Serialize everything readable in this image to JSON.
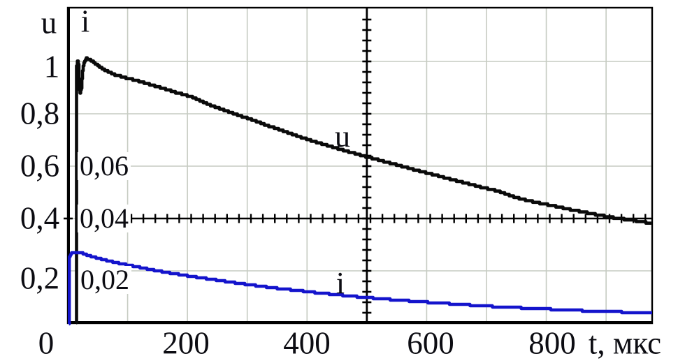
{
  "chart_data": {
    "type": "line",
    "title": "",
    "x_axis": {
      "label": "t, мкс",
      "unit": "мкс",
      "range": [
        0,
        977
      ],
      "grid_step": 100,
      "tick_values": [
        0,
        200,
        400,
        600,
        800
      ],
      "tick_labels": [
        "0",
        "200",
        "400",
        "600",
        "800"
      ]
    },
    "y_axis_u": {
      "label": "u",
      "range": [
        0,
        1.2
      ],
      "grid_step": 0.2,
      "tick_values": [
        1.0,
        0.8,
        0.6,
        0.4,
        0.2
      ],
      "tick_labels": [
        "1",
        "0,8",
        "0,6",
        "0,4",
        "0,2"
      ]
    },
    "y_axis_i": {
      "label": "i",
      "range": [
        0,
        0.12
      ],
      "scale_ratio_to_u": 0.1,
      "tick_values": [
        0.06,
        0.04,
        0.02
      ],
      "tick_labels": [
        "0,06",
        "0,04",
        "0,02"
      ]
    },
    "crosshair_axes": {
      "vertical_at_t": 500,
      "horizontal_at_u": 0.4,
      "minor_tick_u": 0.04,
      "minor_tick_t": 20
    },
    "grid": {
      "show": true,
      "color": "#c6cbc2"
    },
    "legend_position": "inline-labels",
    "series": [
      {
        "name": "u",
        "label": "u",
        "color": "#0a0a0a",
        "axis": "u",
        "points": [
          [
            14,
            0
          ],
          [
            14.6,
            0.985
          ],
          [
            16,
            1.0
          ],
          [
            17.5,
            0.988
          ],
          [
            18.6,
            0.905
          ],
          [
            20.5,
            0.882
          ],
          [
            22.5,
            0.9
          ],
          [
            24.5,
            0.965
          ],
          [
            27,
            0.998
          ],
          [
            31,
            1.012
          ],
          [
            40,
            1.002
          ],
          [
            50,
            0.984
          ],
          [
            63,
            0.965
          ],
          [
            80,
            0.948
          ],
          [
            100,
            0.935
          ],
          [
            120,
            0.924
          ],
          [
            150,
            0.903
          ],
          [
            180,
            0.882
          ],
          [
            210,
            0.862
          ],
          [
            240,
            0.831
          ],
          [
            270,
            0.806
          ],
          [
            300,
            0.783
          ],
          [
            330,
            0.758
          ],
          [
            360,
            0.734
          ],
          [
            390,
            0.71
          ],
          [
            420,
            0.688
          ],
          [
            450,
            0.668
          ],
          [
            480,
            0.648
          ],
          [
            510,
            0.629
          ],
          [
            540,
            0.611
          ],
          [
            570,
            0.592
          ],
          [
            600,
            0.574
          ],
          [
            630,
            0.556
          ],
          [
            660,
            0.538
          ],
          [
            690,
            0.52
          ],
          [
            720,
            0.504
          ],
          [
            750,
            0.479
          ],
          [
            780,
            0.463
          ],
          [
            810,
            0.449
          ],
          [
            840,
            0.434
          ],
          [
            870,
            0.421
          ],
          [
            900,
            0.408
          ],
          [
            930,
            0.397
          ],
          [
            950,
            0.391
          ],
          [
            977,
            0.381
          ]
        ]
      },
      {
        "name": "i",
        "label": "i",
        "color": "#1414cc",
        "axis": "i",
        "points": [
          [
            2,
            0
          ],
          [
            2.6,
            0.0256
          ],
          [
            5,
            0.0266
          ],
          [
            10,
            0.0271
          ],
          [
            18,
            0.0272
          ],
          [
            30,
            0.0262
          ],
          [
            50,
            0.0248
          ],
          [
            75,
            0.0234
          ],
          [
            100,
            0.0222
          ],
          [
            125,
            0.0211
          ],
          [
            150,
            0.02
          ],
          [
            175,
            0.019
          ],
          [
            200,
            0.0181
          ],
          [
            230,
            0.0171
          ],
          [
            260,
            0.0161
          ],
          [
            290,
            0.0151
          ],
          [
            320,
            0.0142
          ],
          [
            350,
            0.0133
          ],
          [
            380,
            0.0126
          ],
          [
            410,
            0.0118
          ],
          [
            440,
            0.0111
          ],
          [
            470,
            0.0104
          ],
          [
            500,
            0.0098
          ],
          [
            530,
            0.0092
          ],
          [
            560,
            0.0087
          ],
          [
            590,
            0.0082
          ],
          [
            620,
            0.0077
          ],
          [
            650,
            0.0073
          ],
          [
            680,
            0.0068
          ],
          [
            710,
            0.0064
          ],
          [
            740,
            0.0061
          ],
          [
            770,
            0.0057
          ],
          [
            800,
            0.0054
          ],
          [
            830,
            0.0051
          ],
          [
            860,
            0.0048
          ],
          [
            890,
            0.0045
          ],
          [
            920,
            0.0043
          ],
          [
            950,
            0.0041
          ],
          [
            977,
            0.004
          ]
        ]
      }
    ]
  },
  "colors": {
    "background": "#ffffff",
    "border": "#000000",
    "text": "#0c0c12"
  }
}
